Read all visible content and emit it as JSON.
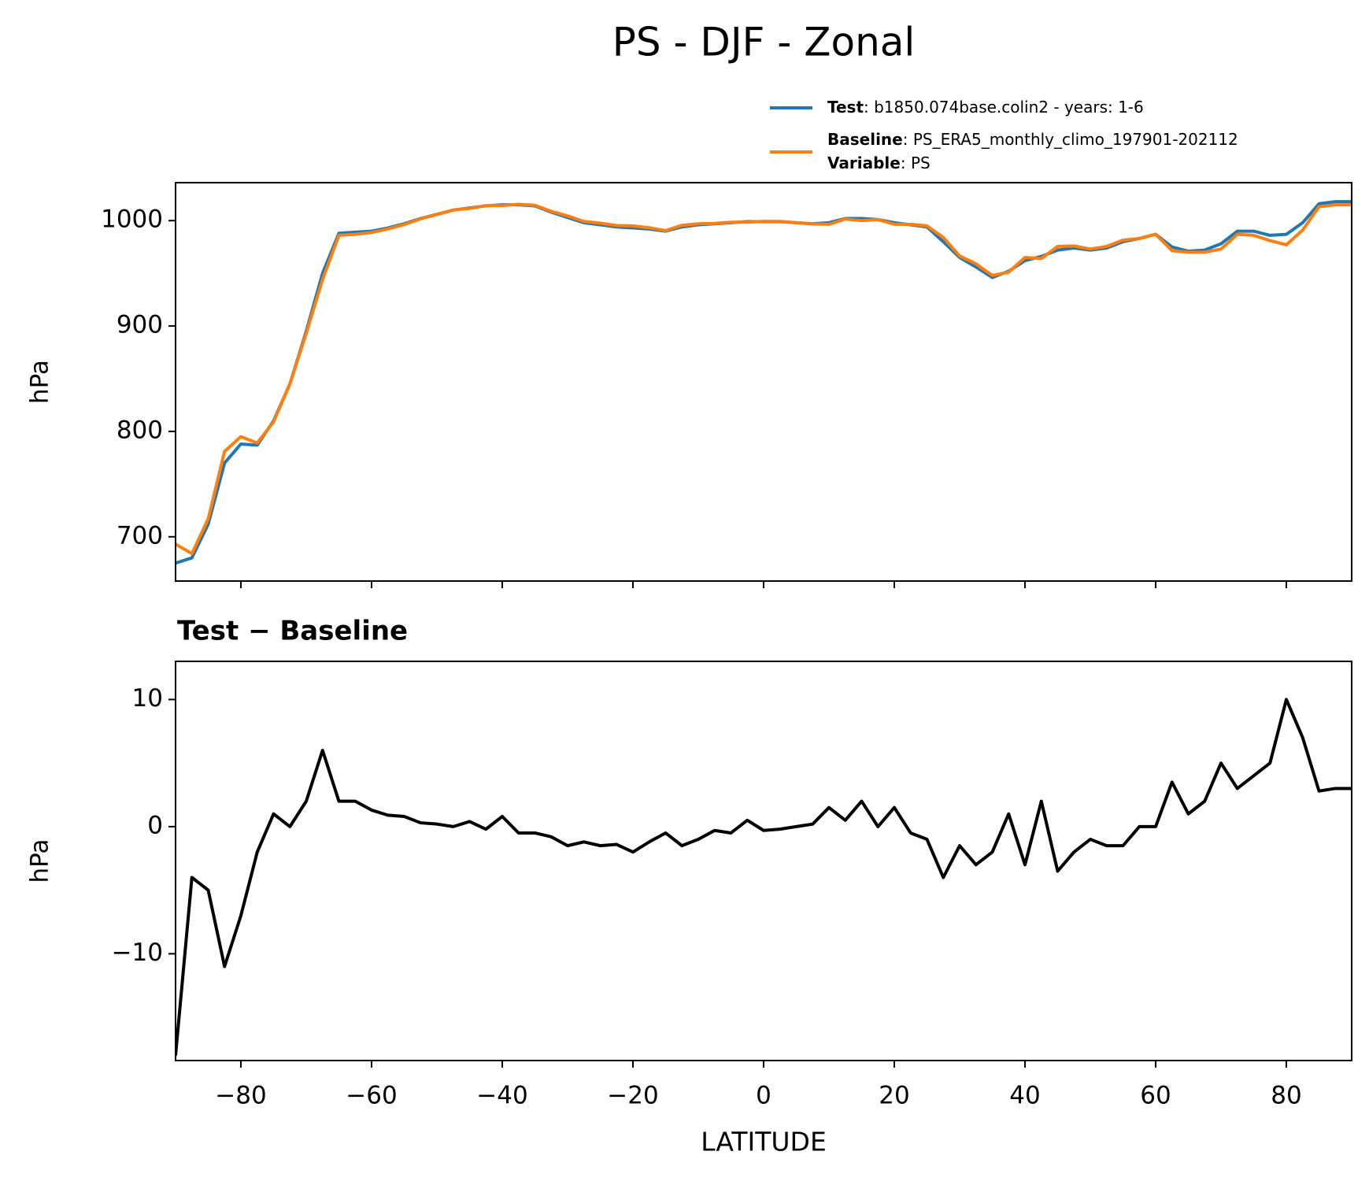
{
  "title": "PS - DJF - Zonal",
  "chart_data": [
    {
      "type": "line",
      "ylabel": "hPa",
      "xlim": [
        -90,
        90
      ],
      "xticks": [
        -80,
        -60,
        -40,
        -20,
        0,
        20,
        40,
        60,
        80
      ],
      "ylim": [
        658,
        1036
      ],
      "yticks": [
        700,
        800,
        900,
        1000
      ],
      "x": [
        -90,
        -87.5,
        -85,
        -82.5,
        -80,
        -77.5,
        -75,
        -72.5,
        -70,
        -67.5,
        -65,
        -62.5,
        -60,
        -57.5,
        -55,
        -52.5,
        -50,
        -47.5,
        -45,
        -42.5,
        -40,
        -37.5,
        -35,
        -32.5,
        -30,
        -27.5,
        -25,
        -22.5,
        -20,
        -17.5,
        -15,
        -12.5,
        -10,
        -7.5,
        -5,
        -2.5,
        0,
        2.5,
        5,
        7.5,
        10,
        12.5,
        15,
        17.5,
        20,
        22.5,
        25,
        27.5,
        30,
        32.5,
        35,
        37.5,
        40,
        42.5,
        45,
        47.5,
        50,
        52.5,
        55,
        57.5,
        60,
        62.5,
        65,
        67.5,
        70,
        72.5,
        75,
        77.5,
        80,
        82.5,
        85,
        87.5,
        90
      ],
      "series": [
        {
          "name": "Test",
          "label": ": b1850.074base.colin2 - years: 1-6",
          "color": "#1f77b4",
          "values": [
            675,
            680,
            712,
            770,
            788,
            787,
            810,
            845,
            895,
            950,
            988,
            989,
            990,
            993,
            997,
            1002,
            1006,
            1010,
            1012,
            1014,
            1015,
            1015,
            1014,
            1008,
            1003,
            998,
            996,
            994,
            993,
            992,
            990,
            994,
            996,
            997,
            998,
            999,
            999,
            999,
            998,
            997,
            998,
            1002,
            1002,
            1001,
            998,
            996,
            994,
            980,
            965,
            956,
            946,
            952,
            962,
            966,
            972,
            974,
            972,
            974,
            980,
            983,
            987,
            975,
            971,
            972,
            978,
            990,
            990,
            986,
            987,
            998,
            1016,
            1018,
            1018
          ]
        },
        {
          "name": "Baseline",
          "label": ": PS_ERA5_monthly_climo_197901-202112",
          "color": "#ff7f0e",
          "values": [
            693,
            684,
            717,
            781,
            795,
            789,
            809,
            845,
            893,
            944,
            986,
            987,
            988.7,
            992.1,
            996.2,
            1001.7,
            1005.8,
            1010,
            1011.6,
            1014.2,
            1014.2,
            1015.5,
            1014.5,
            1008.8,
            1004.5,
            999.2,
            997.5,
            995.4,
            995,
            993.2,
            990.5,
            995.5,
            997,
            997.3,
            998.5,
            998.5,
            999.3,
            999.2,
            998,
            996.8,
            996.5,
            1001.5,
            1000,
            1001,
            996.5,
            996.5,
            995,
            984,
            966.5,
            959,
            948,
            951,
            965,
            964,
            975.5,
            976,
            973,
            975.5,
            981.5,
            983,
            987,
            971.5,
            970,
            970,
            973,
            987,
            986,
            981,
            977,
            991,
            1013.2,
            1015,
            1015
          ]
        }
      ],
      "legend_extra": {
        "name": "Variable",
        "label": ": PS"
      }
    },
    {
      "type": "line",
      "title": "Test − Baseline",
      "ylabel": "hPa",
      "xlabel": "LATITUDE",
      "xlim": [
        -90,
        90
      ],
      "xticks": [
        {
          "value": -80,
          "label": "−80"
        },
        {
          "value": -60,
          "label": "−60"
        },
        {
          "value": -40,
          "label": "−40"
        },
        {
          "value": -20,
          "label": "−20"
        },
        0,
        20,
        40,
        60,
        80
      ],
      "ylim": [
        -18.4,
        13.0
      ],
      "yticks": [
        {
          "value": -10,
          "label": "−10"
        },
        0,
        10
      ],
      "x": [
        -90,
        -87.5,
        -85,
        -82.5,
        -80,
        -77.5,
        -75,
        -72.5,
        -70,
        -67.5,
        -65,
        -62.5,
        -60,
        -57.5,
        -55,
        -52.5,
        -50,
        -47.5,
        -45,
        -42.5,
        -40,
        -37.5,
        -35,
        -32.5,
        -30,
        -27.5,
        -25,
        -22.5,
        -20,
        -17.5,
        -15,
        -12.5,
        -10,
        -7.5,
        -5,
        -2.5,
        0,
        2.5,
        5,
        7.5,
        10,
        12.5,
        15,
        17.5,
        20,
        22.5,
        25,
        27.5,
        30,
        32.5,
        35,
        37.5,
        40,
        42.5,
        45,
        47.5,
        50,
        52.5,
        55,
        57.5,
        60,
        62.5,
        65,
        67.5,
        70,
        72.5,
        75,
        77.5,
        80,
        82.5,
        85,
        87.5,
        90
      ],
      "series": [
        {
          "color": "#000000",
          "values": [
            -18,
            -4,
            -5,
            -11,
            -7,
            -2,
            1,
            0,
            2,
            6,
            2,
            2,
            1.3,
            0.9,
            0.8,
            0.3,
            0.2,
            0,
            0.4,
            -0.2,
            0.8,
            -0.5,
            -0.5,
            -0.8,
            -1.5,
            -1.2,
            -1.5,
            -1.4,
            -2,
            -1.2,
            -0.5,
            -1.5,
            -1,
            -0.3,
            -0.5,
            0.5,
            -0.3,
            -0.2,
            0,
            0.2,
            1.5,
            0.5,
            2,
            0,
            1.5,
            -0.5,
            -1,
            -4,
            -1.5,
            -3,
            -2,
            1,
            -3,
            2,
            -3.5,
            -2,
            -1,
            -1.5,
            -1.5,
            0,
            0,
            3.5,
            1,
            2,
            5,
            3,
            4,
            5,
            10,
            7,
            2.8,
            3,
            3
          ]
        }
      ]
    }
  ]
}
